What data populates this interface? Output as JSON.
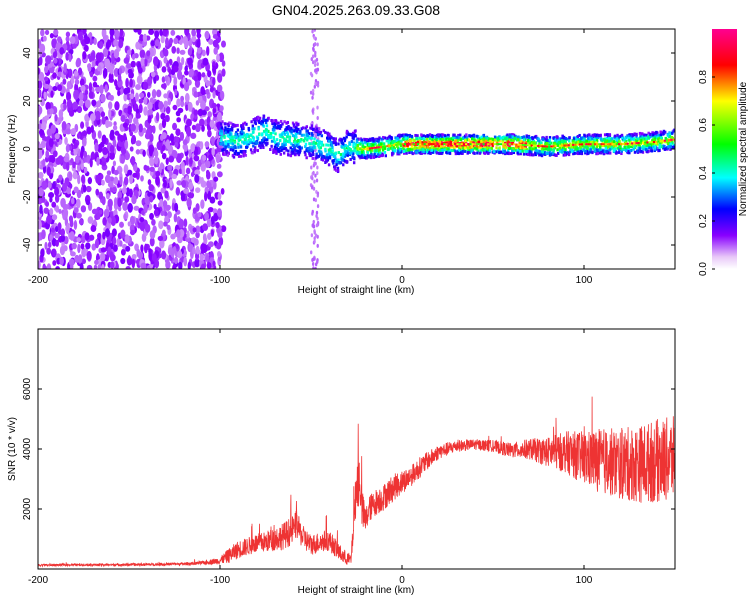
{
  "figure": {
    "title": "GN04.2025.263.09.33.G08"
  },
  "chart_data": [
    {
      "type": "heatmap",
      "xlabel": "Height of straight line (km)",
      "ylabel": "Frequency (Hz)",
      "xlim": [
        -200,
        150
      ],
      "ylim": [
        -50,
        50
      ],
      "xticks": [
        "-200",
        "-100",
        "0",
        "100"
      ],
      "xtick_values": [
        -200,
        -100,
        0,
        100
      ],
      "yticks": [
        "-40",
        "-20",
        "0",
        "20",
        "40"
      ],
      "ytick_values": [
        -40,
        -20,
        0,
        20,
        40
      ],
      "colorbar": {
        "label": "Normalized spectral amplitude",
        "range": [
          0,
          1
        ],
        "ticks": [
          "0.0",
          "0.2",
          "0.4",
          "0.6",
          "0.8"
        ],
        "tick_values": [
          0.0,
          0.2,
          0.4,
          0.6,
          0.8
        ],
        "colormap": [
          "#e8c8f8",
          "#8800ff",
          "#0000ff",
          "#00ffff",
          "#00ff00",
          "#ffff00",
          "#ff0000",
          "#ff0090"
        ]
      },
      "ridge": {
        "x": [
          -100,
          -90,
          -80,
          -75,
          -70,
          -60,
          -50,
          -40,
          -35,
          -30,
          -20,
          -10,
          0,
          20,
          40,
          60,
          80,
          100,
          120,
          140,
          150
        ],
        "frequency": [
          5,
          3,
          6,
          8,
          5,
          4,
          3,
          0,
          -3,
          1,
          0,
          1,
          2,
          2,
          2,
          2,
          1,
          2,
          2,
          3,
          4
        ]
      },
      "noise_region_x": [
        -200,
        -98
      ]
    },
    {
      "type": "line",
      "xlabel": "Height of straight line (km)",
      "ylabel": "SNR (10 * v/v)",
      "xlim": [
        -200,
        150
      ],
      "ylim": [
        0,
        8000
      ],
      "xticks": [
        "-200",
        "-100",
        "0",
        "100"
      ],
      "xtick_values": [
        -200,
        -100,
        0,
        100
      ],
      "yticks": [
        "2000",
        "4000",
        "6000"
      ],
      "ytick_values": [
        2000,
        4000,
        6000
      ],
      "series": [
        {
          "color": "#ee3333",
          "x": [
            -200,
            -180,
            -160,
            -140,
            -120,
            -110,
            -100,
            -95,
            -90,
            -85,
            -80,
            -75,
            -70,
            -65,
            -60,
            -58,
            -55,
            -50,
            -45,
            -40,
            -35,
            -32,
            -28,
            -25,
            -23,
            -22,
            -20,
            -18,
            -15,
            -10,
            -5,
            0,
            5,
            10,
            20,
            30,
            40,
            50,
            60,
            70,
            80,
            90,
            100,
            110,
            120,
            130,
            140,
            150
          ],
          "mean": [
            130,
            140,
            140,
            150,
            170,
            200,
            280,
            450,
            650,
            750,
            850,
            900,
            1000,
            1100,
            1300,
            1500,
            1100,
            800,
            900,
            950,
            600,
            400,
            300,
            2800,
            3000,
            2000,
            1600,
            2000,
            2200,
            2400,
            2700,
            2900,
            3100,
            3400,
            3900,
            4100,
            4150,
            4100,
            3950,
            4000,
            3900,
            3900,
            3700,
            3600,
            3500,
            3500,
            3600,
            3700
          ],
          "amplitude": [
            40,
            40,
            40,
            45,
            50,
            60,
            120,
            250,
            300,
            300,
            320,
            350,
            400,
            450,
            500,
            450,
            400,
            350,
            350,
            350,
            300,
            250,
            200,
            800,
            1000,
            700,
            450,
            450,
            450,
            450,
            450,
            400,
            350,
            350,
            250,
            200,
            180,
            200,
            250,
            350,
            500,
            700,
            900,
            1100,
            1200,
            1300,
            1400,
            1400
          ]
        }
      ]
    }
  ]
}
